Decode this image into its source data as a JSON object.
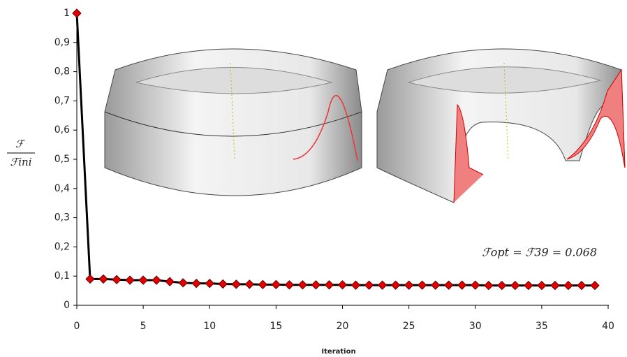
{
  "chart_data": {
    "type": "line",
    "ylabel": {
      "numerator": "ℱ",
      "denominator": "ℱini"
    },
    "xlabel": "Iteration",
    "annotation": "ℱopt = ℱ39 = 0.068",
    "x": [
      0,
      1,
      2,
      3,
      4,
      5,
      6,
      7,
      8,
      9,
      10,
      11,
      12,
      13,
      14,
      15,
      16,
      17,
      18,
      19,
      20,
      21,
      22,
      23,
      24,
      25,
      26,
      27,
      28,
      29,
      30,
      31,
      32,
      33,
      34,
      35,
      36,
      37,
      38,
      39
    ],
    "series": [
      {
        "color": "#e00000",
        "values": [
          1,
          0.09,
          0.09,
          0.088,
          0.086,
          0.086,
          0.086,
          0.081,
          0.077,
          0.075,
          0.075,
          0.073,
          0.072,
          0.072,
          0.071,
          0.071,
          0.07,
          0.07,
          0.07,
          0.07,
          0.07,
          0.069,
          0.069,
          0.069,
          0.069,
          0.069,
          0.069,
          0.069,
          0.069,
          0.069,
          0.069,
          0.068,
          0.068,
          0.068,
          0.068,
          0.068,
          0.068,
          0.068,
          0.068,
          0.068
        ]
      }
    ],
    "xlim": [
      0,
      40
    ],
    "xticks": [
      0,
      5,
      10,
      15,
      20,
      25,
      30,
      35,
      40
    ],
    "ylim": [
      0,
      1
    ],
    "yticks": [
      {
        "value": 0,
        "label": "0"
      },
      {
        "value": 0.1,
        "label": "0,1"
      },
      {
        "value": 0.2,
        "label": "0,2"
      },
      {
        "value": 0.3,
        "label": "0,3"
      },
      {
        "value": 0.4,
        "label": "0,4"
      },
      {
        "value": 0.5,
        "label": "0,5"
      },
      {
        "value": 0.6,
        "label": "0,6"
      },
      {
        "value": 0.7,
        "label": "0,7"
      },
      {
        "value": 0.8,
        "label": "0,8"
      },
      {
        "value": 0.9,
        "label": "0,9"
      },
      {
        "value": 1,
        "label": "1"
      }
    ]
  }
}
